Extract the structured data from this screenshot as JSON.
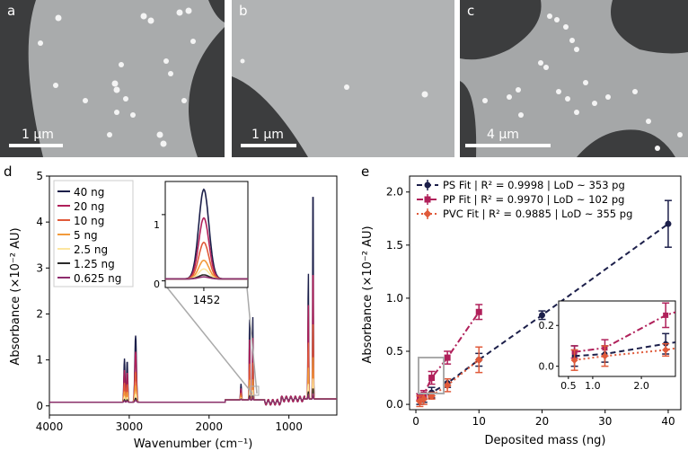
{
  "images": [
    {
      "label": "a",
      "scalebar": "1 μm"
    },
    {
      "label": "b",
      "scalebar": "1 μm"
    },
    {
      "label": "c",
      "scalebar": "4 μm"
    }
  ],
  "panel_d": {
    "label": "d",
    "xlabel": "Wavenumber (cm⁻¹)",
    "ylabel": "Absorbance (×10⁻² AU)",
    "xticks": [
      "4000",
      "3000",
      "2000",
      "1000"
    ],
    "yticks": [
      "0",
      "1",
      "2",
      "3",
      "4",
      "5"
    ],
    "legend": [
      {
        "label": "40 ng",
        "color": "#1c1f4a"
      },
      {
        "label": "20 ng",
        "color": "#b0205a"
      },
      {
        "label": "10 ng",
        "color": "#e05a3a"
      },
      {
        "label": "5 ng",
        "color": "#f29a3b"
      },
      {
        "label": "2.5 ng",
        "color": "#fce6a0"
      },
      {
        "label": "1.25 ng",
        "color": "#2a2a2a"
      },
      {
        "label": "0.625 ng",
        "color": "#8e2d6e"
      }
    ],
    "inset": {
      "xtick": "1452",
      "yticks": [
        "0",
        "1"
      ]
    }
  },
  "chart_data": [
    {
      "type": "line",
      "title": "",
      "xlabel": "Wavenumber (cm⁻¹)",
      "ylabel": "Absorbance (×10⁻² AU)",
      "xlim": [
        4000,
        400
      ],
      "ylim": [
        -0.2,
        5
      ],
      "peaks": [
        {
          "x": 3060,
          "values": [
            0.95,
            0.7
          ]
        },
        {
          "x": 3026,
          "values": [
            0.9,
            0.65
          ]
        },
        {
          "x": 2920,
          "values": [
            1.45,
            1.1
          ]
        },
        {
          "x": 1600,
          "values": [
            0.35,
            0.25
          ]
        },
        {
          "x": 1493,
          "values": [
            1.8,
            1.35
          ]
        },
        {
          "x": 1452,
          "values": [
            1.8,
            1.35
          ]
        },
        {
          "x": 757,
          "values": [
            2.8,
            2.1
          ]
        },
        {
          "x": 698,
          "values": [
            4.9,
            3.0
          ]
        }
      ],
      "series": [
        {
          "name": "40 ng"
        },
        {
          "name": "20 ng"
        },
        {
          "name": "10 ng"
        },
        {
          "name": "5 ng"
        },
        {
          "name": "2.5 ng"
        },
        {
          "name": "1.25 ng"
        },
        {
          "name": "0.625 ng"
        }
      ]
    },
    {
      "type": "scatter",
      "title": "",
      "xlabel": "Deposited mass (ng)",
      "ylabel": "Absorbance (×10⁻² AU)",
      "xlim": [
        -1,
        42
      ],
      "ylim": [
        -0.05,
        2.15
      ],
      "xticks": [
        "0",
        "10",
        "20",
        "30",
        "40"
      ],
      "yticks": [
        "0.0",
        "0.5",
        "1.0",
        "1.5",
        "2.0"
      ],
      "series": [
        {
          "name": "PS Fit | R² = 0.9998 | LoD ~ 353 pg",
          "color": "#1c1f4a",
          "x": [
            0.625,
            1.25,
            2.5,
            5,
            10,
            20,
            40
          ],
          "y": [
            0.05,
            0.06,
            0.11,
            0.2,
            0.42,
            0.84,
            1.7
          ],
          "err": [
            0.05,
            0.04,
            0.05,
            0.04,
            0.06,
            0.04,
            0.22
          ]
        },
        {
          "name": "PP Fit | R² = 0.9970 | LoD ~ 102 pg",
          "color": "#b0205a",
          "x": [
            0.625,
            1.25,
            2.5,
            5,
            10
          ],
          "y": [
            0.07,
            0.09,
            0.25,
            0.44,
            0.87
          ],
          "err": [
            0.03,
            0.04,
            0.06,
            0.06,
            0.07
          ]
        },
        {
          "name": "PVC Fit | R² = 0.9885 | LoD ~ 355 pg",
          "color": "#e05a3a",
          "x": [
            0.625,
            1.25,
            2.5,
            5,
            10
          ],
          "y": [
            0.03,
            0.05,
            0.08,
            0.18,
            0.42
          ],
          "err": [
            0.05,
            0.05,
            0.03,
            0.06,
            0.12
          ]
        }
      ],
      "inset": {
        "xticks": [
          "0.5",
          "1.0",
          "2.0"
        ],
        "yticks": [
          "0.0",
          "0.2"
        ]
      }
    }
  ],
  "panel_e": {
    "label": "e"
  }
}
